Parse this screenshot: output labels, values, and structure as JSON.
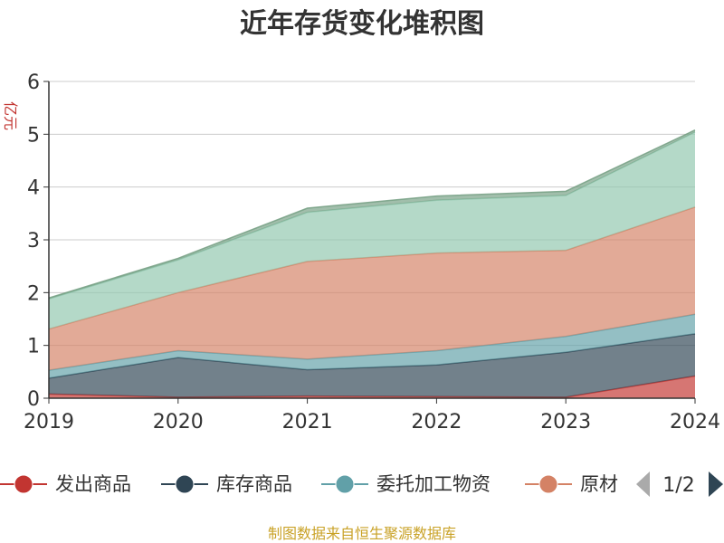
{
  "chart_data": {
    "type": "area",
    "stacked": true,
    "title": "近年存货变化堆积图",
    "ylabel": "亿元",
    "x": [
      "2019",
      "2020",
      "2021",
      "2022",
      "2023",
      "2024"
    ],
    "yticks": [
      "0",
      "1",
      "2",
      "3",
      "4",
      "5",
      "6"
    ],
    "ylim": [
      0,
      6
    ],
    "grid": true,
    "legend_position": "bottom",
    "series": [
      {
        "name": "发出商品",
        "color": "#c23531",
        "values": [
          0.08,
          0.02,
          0.04,
          0.03,
          0.02,
          0.42
        ]
      },
      {
        "name": "库存商品",
        "color": "#2f4554",
        "values": [
          0.3,
          0.75,
          0.5,
          0.6,
          0.85,
          0.8
        ]
      },
      {
        "name": "委托加工物资",
        "color": "#61a0a8",
        "values": [
          0.15,
          0.13,
          0.2,
          0.27,
          0.3,
          0.37
        ]
      },
      {
        "name": "原材料",
        "color": "#d48265",
        "values": [
          0.78,
          1.1,
          1.85,
          1.85,
          1.63,
          2.03
        ]
      },
      {
        "name": "",
        "color": "#91c7ae",
        "values": [
          0.57,
          0.62,
          0.93,
          1.0,
          1.04,
          1.42
        ]
      },
      {
        "name": "",
        "color": "#749f83",
        "values": [
          0.02,
          0.03,
          0.08,
          0.08,
          0.08,
          0.04
        ]
      }
    ],
    "legend": {
      "visible": [
        "发出商品",
        "库存商品",
        "委托加工物资",
        "原材"
      ],
      "page": "1/2"
    },
    "source": "制图数据来自恒生聚源数据库"
  }
}
